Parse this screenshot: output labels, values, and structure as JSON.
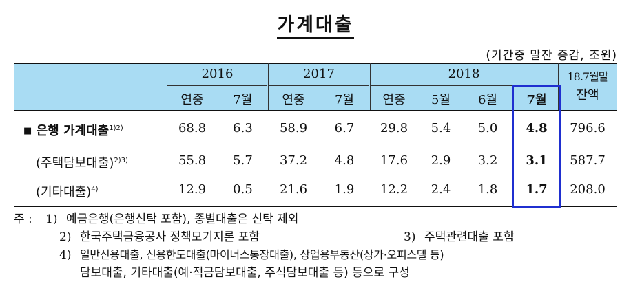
{
  "title": "가계대출",
  "unit": "(기간중  말잔  증감,  조원)",
  "header": {
    "years": [
      "2016",
      "2017",
      "2018"
    ],
    "balance_label_line1": "18.7월말",
    "balance_label_line2": "잔액",
    "sub": [
      "연중",
      "7월",
      "연중",
      "7월",
      "연중",
      "5월",
      "6월",
      "7월"
    ]
  },
  "rows": [
    {
      "bullet": "■",
      "label": "은행  가계대출",
      "sup": "1)2)",
      "values": [
        "68.8",
        "6.3",
        "58.9",
        "6.7",
        "29.8",
        "5.4",
        "5.0",
        "4.8",
        "796.6"
      ]
    },
    {
      "bullet": "",
      "label": "(주택담보대출)",
      "sup": "2)3)",
      "values": [
        "55.8",
        "5.7",
        "37.2",
        "4.8",
        "17.6",
        "2.9",
        "3.2",
        "3.1",
        "587.7"
      ]
    },
    {
      "bullet": "",
      "label": "(기타대출)",
      "sup": "4)",
      "values": [
        "12.9",
        "0.5",
        "21.6",
        "1.9",
        "12.2",
        "2.4",
        "1.8",
        "1.7",
        "208.0"
      ]
    }
  ],
  "notes": {
    "prefix": "주 :",
    "items": [
      {
        "num": "1)",
        "text": "예금은행(은행신탁  포함),  종별대출은  신탁  제외"
      },
      {
        "num": "2)",
        "text": "한국주택금융공사  정책모기지론  포함"
      },
      {
        "num": "3)",
        "text": "주택관련대출  포함"
      },
      {
        "num": "4)",
        "text": "일반신용대출,  신용한도대출(마이너스통장대출),  상업용부동산(상가·오피스텔  등)"
      },
      {
        "num": "",
        "text": "담보대출,  기타대출(예·적금담보대출,  주식담보대출  등)  등으로  구성"
      }
    ]
  },
  "colors": {
    "header_bg": "#a9dcf3",
    "highlight_border": "#1f2fd0"
  }
}
